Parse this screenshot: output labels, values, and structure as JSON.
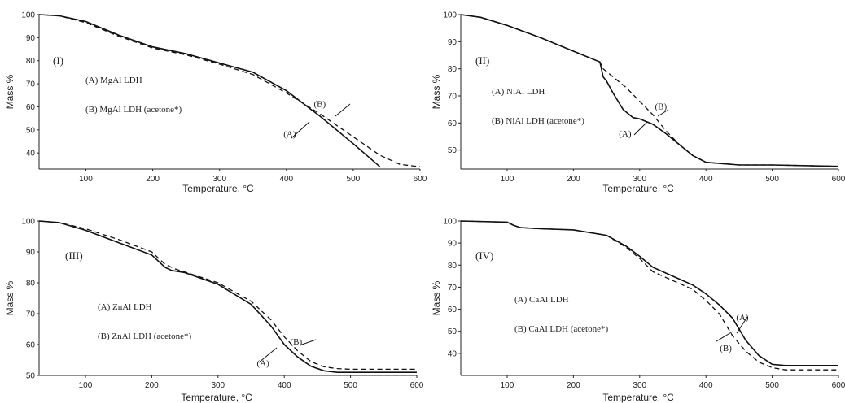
{
  "chart_data": [
    {
      "type": "line",
      "panel_label": "(I)",
      "xlabel": "Temperature, °C",
      "ylabel": "Mass %",
      "xlim": [
        30,
        600
      ],
      "ylim": [
        33,
        100
      ],
      "xticks": [
        100,
        200,
        300,
        400,
        500,
        600
      ],
      "yticks": [
        40,
        50,
        60,
        70,
        80,
        90,
        100
      ],
      "legend_lines": [
        "(A) MgAl LDH",
        "(B) MgAl LDH (acetone*)"
      ],
      "annotations": [
        {
          "text": "(A)",
          "x": 405,
          "y": 47
        },
        {
          "text": "(B)",
          "x": 450,
          "y": 60
        }
      ],
      "series": [
        {
          "label": "A",
          "style": "solid",
          "x": [
            30,
            60,
            100,
            150,
            200,
            250,
            300,
            350,
            400,
            450,
            500,
            540
          ],
          "y": [
            100,
            99.5,
            97,
            91,
            86,
            83,
            79,
            75,
            67,
            56,
            44,
            34
          ]
        },
        {
          "label": "B",
          "style": "dashed",
          "x": [
            30,
            60,
            100,
            150,
            200,
            250,
            300,
            350,
            400,
            450,
            500,
            540,
            570,
            600
          ],
          "y": [
            100,
            99.5,
            96.5,
            90.5,
            85.5,
            82.5,
            78.5,
            74,
            66,
            57,
            47,
            39,
            35,
            34
          ]
        }
      ]
    },
    {
      "type": "line",
      "panel_label": "(II)",
      "xlabel": "Temperature, °C",
      "ylabel": "Mass %",
      "xlim": [
        30,
        600
      ],
      "ylim": [
        43,
        100
      ],
      "xticks": [
        100,
        200,
        300,
        400,
        500,
        600
      ],
      "yticks": [
        50,
        60,
        70,
        80,
        90,
        100
      ],
      "legend_lines": [
        "(A) NiAl LDH",
        "(B) NiAl LDH (acetone*)"
      ],
      "annotations": [
        {
          "text": "(A)",
          "x": 278,
          "y": 55
        },
        {
          "text": "(B)",
          "x": 332,
          "y": 65
        }
      ],
      "series": [
        {
          "label": "A",
          "style": "solid",
          "x": [
            30,
            60,
            100,
            150,
            200,
            240,
            245,
            250,
            260,
            275,
            290,
            300,
            320,
            340,
            360,
            380,
            400,
            450,
            500,
            600
          ],
          "y": [
            100,
            99,
            96,
            91.5,
            86.5,
            82.5,
            77,
            75.5,
            71,
            65,
            62,
            61.5,
            59.5,
            56,
            52,
            48,
            45.5,
            44.5,
            44.5,
            44
          ]
        },
        {
          "label": "B",
          "style": "dashed",
          "x": [
            30,
            60,
            100,
            150,
            200,
            240,
            245,
            260,
            280,
            300,
            320,
            340,
            360,
            380,
            400,
            450,
            500,
            600
          ],
          "y": [
            100,
            99,
            96,
            91.5,
            86.5,
            82.5,
            80,
            77,
            73,
            68,
            63,
            57,
            52,
            48,
            45.5,
            44.5,
            44.5,
            44
          ]
        }
      ]
    },
    {
      "type": "line",
      "panel_label": "(III)",
      "xlabel": "Temperature, °C",
      "ylabel": "Mass %",
      "xlim": [
        30,
        600
      ],
      "ylim": [
        50,
        100
      ],
      "xticks": [
        100,
        200,
        300,
        400,
        500,
        600
      ],
      "yticks": [
        50,
        60,
        70,
        80,
        90,
        100
      ],
      "legend_lines": [
        "(A) ZnAl LDH",
        "(B) ZnAl LDH (acetone*)"
      ],
      "annotations": [
        {
          "text": "(A)",
          "x": 368,
          "y": 53
        },
        {
          "text": "(B)",
          "x": 418,
          "y": 60
        }
      ],
      "series": [
        {
          "label": "A",
          "style": "solid",
          "x": [
            30,
            60,
            100,
            150,
            200,
            220,
            230,
            250,
            300,
            350,
            380,
            400,
            420,
            440,
            460,
            480,
            500,
            600
          ],
          "y": [
            100,
            99.5,
            97,
            93,
            89,
            85,
            84,
            83.3,
            79.5,
            73,
            66,
            60,
            56,
            53,
            51.5,
            51,
            51,
            51
          ]
        },
        {
          "label": "B",
          "style": "dashed",
          "x": [
            30,
            60,
            100,
            150,
            200,
            220,
            235,
            250,
            300,
            350,
            380,
            400,
            420,
            440,
            460,
            480,
            500,
            600
          ],
          "y": [
            100,
            99.5,
            97.5,
            94,
            90,
            86,
            84.5,
            83.5,
            80,
            74,
            68,
            62.5,
            58,
            54.5,
            52.8,
            52.2,
            52,
            52
          ]
        }
      ]
    },
    {
      "type": "line",
      "panel_label": "(IV)",
      "xlabel": "Temperature, °C",
      "ylabel": "Mass %",
      "xlim": [
        30,
        600
      ],
      "ylim": [
        30,
        100
      ],
      "xticks": [
        100,
        200,
        300,
        400,
        500,
        600
      ],
      "yticks": [
        40,
        50,
        60,
        70,
        80,
        90,
        100
      ],
      "legend_lines": [
        "(A) CaAl LDH",
        "(B) CaAl LDH (acetone*)"
      ],
      "annotations": [
        {
          "text": "(A)",
          "x": 455,
          "y": 55
        },
        {
          "text": "(B)",
          "x": 430,
          "y": 41
        }
      ],
      "series": [
        {
          "label": "A",
          "style": "solid",
          "x": [
            30,
            100,
            110,
            120,
            150,
            200,
            250,
            280,
            300,
            320,
            350,
            380,
            400,
            420,
            440,
            460,
            480,
            500,
            520,
            600
          ],
          "y": [
            100,
            99.5,
            98,
            97,
            96.5,
            96,
            93.5,
            88.5,
            84,
            79,
            75,
            71,
            67,
            62,
            56,
            46,
            39,
            35,
            34.5,
            34.5
          ]
        },
        {
          "label": "B",
          "style": "dashed",
          "x": [
            30,
            100,
            110,
            120,
            150,
            200,
            250,
            280,
            300,
            320,
            350,
            380,
            400,
            420,
            440,
            460,
            480,
            500,
            520,
            600
          ],
          "y": [
            100,
            99.5,
            98,
            97,
            96.5,
            96,
            93.5,
            88,
            83,
            77,
            73,
            69,
            64,
            58,
            48,
            41,
            36,
            33.5,
            32.5,
            32.5
          ]
        }
      ]
    }
  ]
}
